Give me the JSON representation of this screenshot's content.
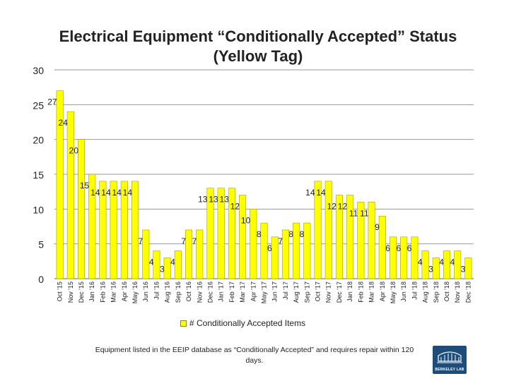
{
  "chart_data": {
    "type": "bar",
    "title": "Electrical Equipment “Conditionally Accepted” Status (Yellow Tag)",
    "title_line1": "Electrical Equipment “Conditionally Accepted” Status",
    "title_line2": "(Yellow Tag)",
    "xlabel": "",
    "ylabel": "",
    "ylim": [
      0,
      30
    ],
    "yticks": [
      0,
      5,
      10,
      15,
      20,
      25,
      30
    ],
    "grid": true,
    "legend_position": "bottom",
    "bar_color": "#ffff00",
    "bar_edge_color": "#a0a000",
    "categories": [
      "Oct '15",
      "Nov '15",
      "Dec '15",
      "Jan '16",
      "Feb '16",
      "Mar '16",
      "Apr '16",
      "May '16",
      "Jun '16",
      "Jul '16",
      "Aug '16",
      "Sep '16",
      "Oct '16",
      "Nov '16",
      "Dec '16",
      "Jan '17",
      "Feb '17",
      "Mar '17",
      "Apr '17",
      "May '17",
      "Jun '17",
      "Jul '17",
      "Aug '17",
      "Sep '17",
      "Oct '17",
      "Nov '17",
      "Dec '17",
      "Jan '18",
      "Feb '18",
      "Mar '18",
      "Apr '18",
      "May '18",
      "Jun '18",
      "Jul '18",
      "Aug '18",
      "Sep '18",
      "Oct '18",
      "Nov '18",
      "Dec '18"
    ],
    "series": [
      {
        "name": "# Conditionally Accepted Items",
        "values": [
          27,
          24,
          20,
          15,
          14,
          14,
          14,
          14,
          7,
          4,
          3,
          4,
          7,
          7,
          13,
          13,
          13,
          12,
          10,
          8,
          6,
          7,
          8,
          8,
          14,
          14,
          12,
          12,
          11,
          11,
          9,
          6,
          6,
          6,
          4,
          3,
          4,
          4,
          3
        ]
      }
    ],
    "footnote": "Equipment listed in the EEIP database as “Conditionally Accepted” and requires repair within 120 days.",
    "logo_text": "BERKELEY LAB"
  }
}
